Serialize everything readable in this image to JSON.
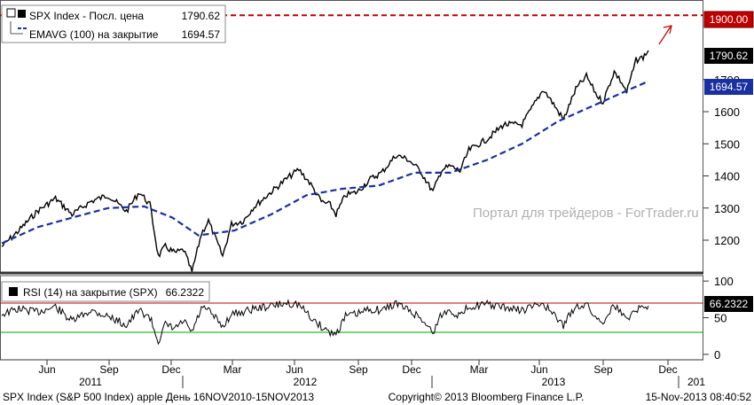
{
  "footer": {
    "left": "SPX Index (S&P 500 Index) apple  День 16NOV2010-15NOV2013",
    "center": "Copyright© 2013 Bloomberg Finance L.P.",
    "right": "15-Nov-2013 08:40:52"
  },
  "watermark": "Портал для трейдеров - ForTrader.ru",
  "colors": {
    "price": "#000000",
    "ema": "#1a2fa0",
    "target": "#c00000",
    "rsi_upper": "#c00000",
    "rsi_lower": "#00a000"
  },
  "chart_data": [
    {
      "type": "line",
      "panel": "price",
      "x_range": [
        "2010-11-16",
        "2013-11-15"
      ],
      "ylim": [
        1120,
        1920
      ],
      "y_ticks": [
        1200,
        1300,
        1400,
        1500,
        1600,
        1700
      ],
      "legend": {
        "price_label": "SPX Index - Посл. цена",
        "price_value": "1790.62",
        "ema_label": "EMAVG (100) на закрытие",
        "ema_value": "1694.57"
      },
      "target_level": {
        "value": 1900.0,
        "label": "1900.00"
      },
      "last_price_label": "1790.62",
      "last_ema_label": "1694.57",
      "series": [
        {
          "name": "SPX Index - Посл. цена",
          "x": [
            "2010-11-16",
            "2010-12-15",
            "2011-01-15",
            "2011-02-15",
            "2011-03-15",
            "2011-04-15",
            "2011-05-15",
            "2011-06-15",
            "2011-07-07",
            "2011-07-25",
            "2011-08-08",
            "2011-08-20",
            "2011-09-05",
            "2011-09-20",
            "2011-10-04",
            "2011-10-20",
            "2011-11-01",
            "2011-11-25",
            "2011-12-10",
            "2011-12-30",
            "2012-01-15",
            "2012-02-15",
            "2012-03-15",
            "2012-04-02",
            "2012-04-20",
            "2012-05-10",
            "2012-05-25",
            "2012-06-04",
            "2012-06-20",
            "2012-07-10",
            "2012-08-01",
            "2012-08-20",
            "2012-09-14",
            "2012-10-05",
            "2012-10-25",
            "2012-11-15",
            "2012-11-30",
            "2012-12-15",
            "2012-12-31",
            "2013-01-15",
            "2013-02-15",
            "2013-03-15",
            "2013-04-15",
            "2013-05-21",
            "2013-06-05",
            "2013-06-24",
            "2013-07-15",
            "2013-08-02",
            "2013-08-20",
            "2013-08-30",
            "2013-09-18",
            "2013-10-01",
            "2013-10-09",
            "2013-10-25",
            "2013-11-06",
            "2013-11-15"
          ],
          "values": [
            1180,
            1230,
            1290,
            1330,
            1280,
            1320,
            1340,
            1290,
            1350,
            1310,
            1150,
            1180,
            1160,
            1170,
            1100,
            1220,
            1260,
            1150,
            1250,
            1260,
            1300,
            1350,
            1395,
            1420,
            1380,
            1320,
            1310,
            1280,
            1340,
            1350,
            1390,
            1410,
            1465,
            1450,
            1415,
            1350,
            1420,
            1430,
            1415,
            1480,
            1515,
            1560,
            1560,
            1670,
            1630,
            1575,
            1670,
            1710,
            1650,
            1630,
            1725,
            1690,
            1660,
            1760,
            1770,
            1790.62
          ]
        },
        {
          "name": "EMAVG (100) на закрытие",
          "x": [
            "2010-11-16",
            "2011-01-15",
            "2011-03-15",
            "2011-05-15",
            "2011-07-15",
            "2011-09-01",
            "2011-10-15",
            "2011-12-15",
            "2012-02-15",
            "2012-04-15",
            "2012-06-15",
            "2012-08-15",
            "2012-10-15",
            "2012-12-15",
            "2013-02-15",
            "2013-04-15",
            "2013-06-15",
            "2013-08-15",
            "2013-10-15",
            "2013-11-15"
          ],
          "values": [
            1190,
            1240,
            1270,
            1300,
            1305,
            1270,
            1215,
            1230,
            1280,
            1340,
            1360,
            1370,
            1410,
            1410,
            1450,
            1500,
            1570,
            1620,
            1670,
            1694.57
          ]
        }
      ]
    },
    {
      "type": "line",
      "panel": "rsi",
      "ylim": [
        -5,
        105
      ],
      "y_ticks": [
        0,
        50,
        100
      ],
      "overbought": 70,
      "oversold": 30,
      "legend": {
        "label": "RSI (14) на закрытие (SPX)",
        "value": "66.2322"
      },
      "last_label": "66.2322",
      "series": [
        {
          "name": "RSI (14) на закрытие (SPX)",
          "x": [
            "2010-11-16",
            "2010-12-15",
            "2011-01-15",
            "2011-02-15",
            "2011-03-15",
            "2011-04-15",
            "2011-05-15",
            "2011-06-15",
            "2011-07-07",
            "2011-07-25",
            "2011-08-08",
            "2011-08-20",
            "2011-09-05",
            "2011-09-20",
            "2011-10-04",
            "2011-10-20",
            "2011-11-01",
            "2011-11-25",
            "2011-12-10",
            "2011-12-30",
            "2012-01-15",
            "2012-02-15",
            "2012-03-15",
            "2012-04-02",
            "2012-04-20",
            "2012-05-10",
            "2012-05-25",
            "2012-06-04",
            "2012-06-20",
            "2012-07-10",
            "2012-08-01",
            "2012-08-20",
            "2012-09-14",
            "2012-10-05",
            "2012-10-25",
            "2012-11-15",
            "2012-11-30",
            "2012-12-15",
            "2012-12-31",
            "2013-01-15",
            "2013-02-15",
            "2013-03-15",
            "2013-04-15",
            "2013-05-21",
            "2013-06-05",
            "2013-06-24",
            "2013-07-15",
            "2013-08-02",
            "2013-08-20",
            "2013-08-30",
            "2013-09-18",
            "2013-10-01",
            "2013-10-09",
            "2013-10-25",
            "2013-11-06",
            "2013-11-15"
          ],
          "values": [
            55,
            62,
            58,
            65,
            45,
            60,
            52,
            40,
            60,
            50,
            18,
            40,
            35,
            45,
            30,
            62,
            60,
            38,
            55,
            58,
            62,
            66,
            70,
            68,
            52,
            38,
            30,
            28,
            52,
            55,
            62,
            60,
            70,
            60,
            50,
            30,
            55,
            60,
            52,
            66,
            68,
            64,
            60,
            70,
            55,
            40,
            66,
            68,
            48,
            45,
            68,
            55,
            48,
            62,
            64,
            66.23
          ]
        }
      ]
    }
  ],
  "x_axis": {
    "months": [
      "Jun",
      "Sep",
      "Dec",
      "Mar",
      "Jun",
      "Sep",
      "Dec",
      "Mar",
      "Jun",
      "Sep",
      "Dec"
    ],
    "years": [
      "2011",
      "2012",
      "2013",
      "201"
    ]
  }
}
